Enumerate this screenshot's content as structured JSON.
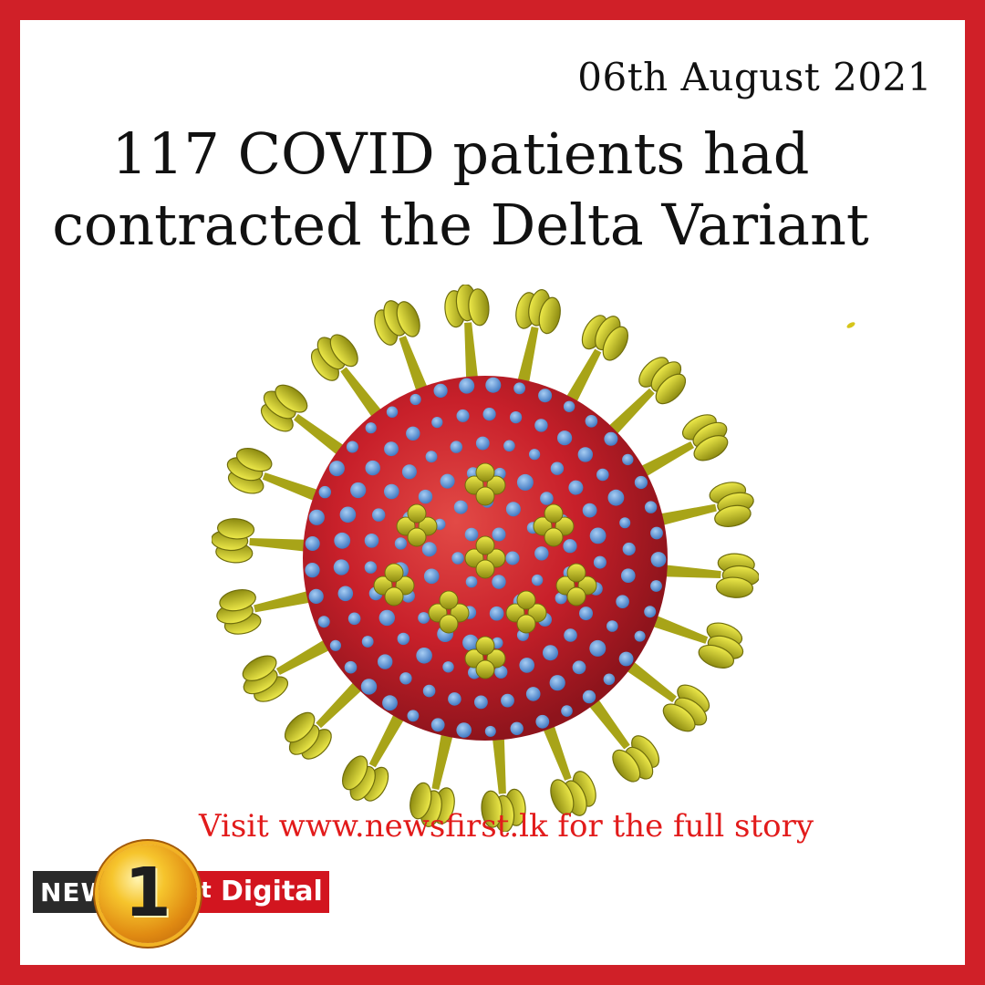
{
  "post": {
    "date": "06th August 2021",
    "headline_line1": "117 COVID patients had",
    "headline_line2": "contracted the Delta Variant",
    "cta": "Visit www.newsfirst.lk for the full story"
  },
  "illustration": {
    "subject": "coronavirus-particle-icon",
    "body_color": "#c8202a",
    "spike_color": "#c7c21f",
    "knob_color": "#5a93d6"
  },
  "logo": {
    "news": "NEWS",
    "number": "1",
    "suffix": "st",
    "brand": "Digital"
  },
  "colors": {
    "frame": "#d02028",
    "cta": "#e21b1b"
  }
}
